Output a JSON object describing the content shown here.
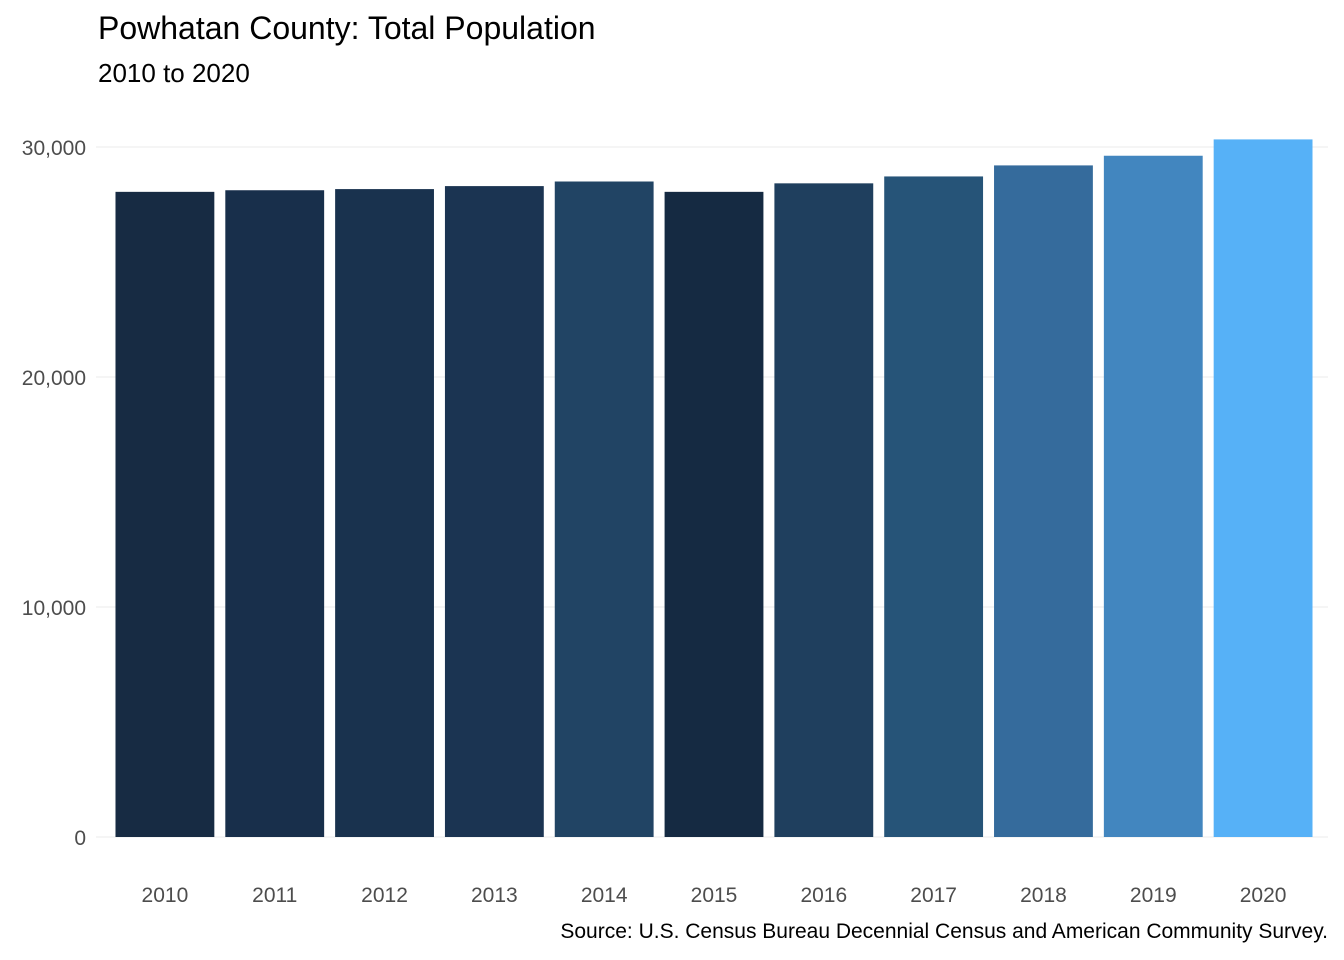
{
  "chart_data": {
    "type": "bar",
    "title": "Powhatan County: Total Population",
    "subtitle": "2010 to 2020",
    "caption": "Source: U.S. Census Bureau Decennial Census and American Community Survey.",
    "xlabel": "",
    "ylabel": "",
    "categories": [
      "2010",
      "2011",
      "2012",
      "2013",
      "2014",
      "2015",
      "2016",
      "2017",
      "2018",
      "2019",
      "2020"
    ],
    "values": [
      28050,
      28120,
      28170,
      28300,
      28500,
      28050,
      28420,
      28720,
      29200,
      29620,
      30330
    ],
    "bar_colors": [
      "#172b43",
      "#182f4b",
      "#19324e",
      "#1b3452",
      "#214464",
      "#152a42",
      "#1f3f5e",
      "#265478",
      "#356b9c",
      "#4286bf",
      "#56b1f7"
    ],
    "ylim": [
      0,
      30500
    ],
    "yticks": [
      0,
      10000,
      20000,
      30000
    ],
    "ytick_labels": [
      "0",
      "10,000",
      "20,000",
      "30,000"
    ],
    "grid": true,
    "legend": "none"
  }
}
